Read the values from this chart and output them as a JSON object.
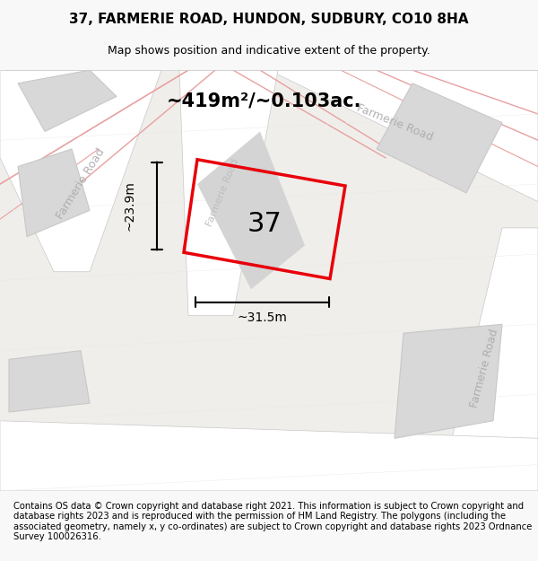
{
  "title": "37, FARMERIE ROAD, HUNDON, SUDBURY, CO10 8HA",
  "subtitle": "Map shows position and indicative extent of the property.",
  "footer": "Contains OS data © Crown copyright and database right 2021. This information is subject to Crown copyright and database rights 2023 and is reproduced with the permission of HM Land Registry. The polygons (including the associated geometry, namely x, y co-ordinates) are subject to Crown copyright and database rights 2023 Ordnance Survey 100026316.",
  "area_label": "~419m²/~0.103ac.",
  "number_label": "37",
  "dim_width": "~31.5m",
  "dim_height": "~23.9m",
  "road_label_top_right": "Farmerie Road",
  "road_label_left": "Farmerie Road",
  "road_label_bottom_right": "Farmerie Road",
  "bg_color": "#f0eeeb",
  "map_bg": "#f0eeeb",
  "road_color": "#ffffff",
  "building_fill": "#e0e0e0",
  "red_poly_color": "#e8000a",
  "road_line_color": "#e8a0a0",
  "gray_line_color": "#c8c8c8",
  "title_fontsize": 11,
  "subtitle_fontsize": 9,
  "footer_fontsize": 7.2,
  "area_fontsize": 15,
  "number_fontsize": 22,
  "dim_fontsize": 10
}
